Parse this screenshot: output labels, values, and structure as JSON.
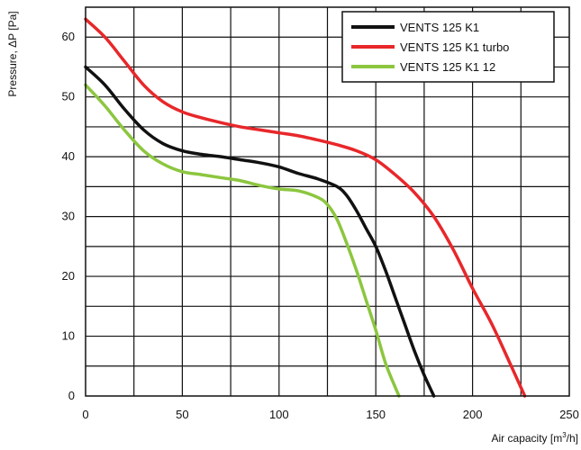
{
  "chart_data": {
    "type": "line",
    "title": "",
    "xlabel_prefix": "Air capacity [m",
    "xlabel_sup": "3",
    "xlabel_suffix": "/h]",
    "ylabel": "Pressure, ΔP [Pa]",
    "xlim": [
      0,
      250
    ],
    "ylim": [
      0,
      65
    ],
    "x_ticks": [
      0,
      50,
      100,
      150,
      200,
      250
    ],
    "y_ticks": [
      0,
      10,
      20,
      30,
      40,
      50,
      60
    ],
    "x_grid_step": 25,
    "y_grid_step": 5,
    "grid": true,
    "legend_position": "top-right",
    "series": [
      {
        "name": "VENTS 125 K1",
        "color": "#111111",
        "x": [
          0,
          10,
          20,
          30,
          40,
          50,
          60,
          70,
          80,
          90,
          100,
          110,
          120,
          130,
          135,
          140,
          145,
          150,
          155,
          160,
          165,
          170,
          175,
          180
        ],
        "y": [
          55,
          52,
          48,
          44.5,
          42.2,
          41,
          40.4,
          40,
          39.5,
          39,
          38.3,
          37.2,
          36.3,
          35,
          33.5,
          31,
          28,
          25,
          21,
          16.5,
          12,
          7.5,
          3.5,
          0
        ]
      },
      {
        "name": "VENTS 125 K1 turbo",
        "color": "#e8272a",
        "x": [
          0,
          10,
          20,
          30,
          40,
          50,
          60,
          70,
          80,
          90,
          100,
          110,
          120,
          130,
          140,
          150,
          160,
          170,
          180,
          190,
          200,
          210,
          220,
          227
        ],
        "y": [
          63,
          60,
          56,
          52,
          49.2,
          47.5,
          46.5,
          45.7,
          45,
          44.5,
          44,
          43.5,
          42.8,
          42,
          41,
          39.5,
          37,
          34,
          30,
          24.5,
          18,
          12,
          5,
          0
        ]
      },
      {
        "name": "VENTS 125 K1 12",
        "color": "#8cc63f",
        "x": [
          0,
          10,
          20,
          30,
          40,
          50,
          60,
          70,
          80,
          90,
          100,
          110,
          120,
          125,
          130,
          135,
          140,
          145,
          150,
          155,
          160,
          162
        ],
        "y": [
          52,
          48.5,
          44.5,
          41,
          38.8,
          37.5,
          37,
          36.5,
          36,
          35.2,
          34.6,
          34.3,
          33.2,
          32,
          29.5,
          25.5,
          21,
          16,
          11,
          5.5,
          1.5,
          0
        ]
      }
    ]
  }
}
